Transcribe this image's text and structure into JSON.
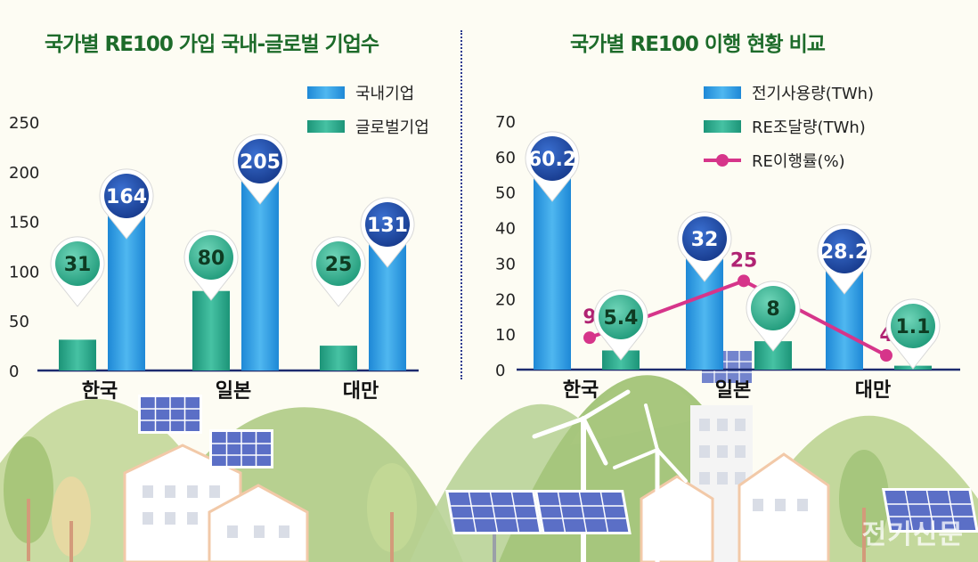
{
  "titles": {
    "left": "국가별 RE100 가입 국내-글로벌 기업수",
    "right": "국가별 RE100 이행 현황 비교"
  },
  "watermark": "전기신문",
  "colors": {
    "domestic": "#2196e0",
    "global": "#22a58c",
    "re_rate": "#d6358a",
    "title": "#1d6b2a",
    "pin": "#1f4aa6"
  },
  "chart_data": [
    {
      "type": "bar",
      "title": "국가별 RE100 가입 국내-글로벌 기업수",
      "categories": [
        "한국",
        "일본",
        "대만"
      ],
      "series": [
        {
          "name": "국내기업",
          "values": [
            164,
            205,
            131
          ]
        },
        {
          "name": "글로벌기업",
          "values": [
            31,
            80,
            25
          ]
        }
      ],
      "ylim": [
        0,
        250
      ],
      "yticks": [
        0,
        50,
        100,
        150,
        200,
        250
      ],
      "legend": "top-right",
      "grid": false
    },
    {
      "type": "bar",
      "title": "국가별 RE100 이행 현황 비교",
      "categories": [
        "한국",
        "일본",
        "대만"
      ],
      "series": [
        {
          "name": "전기사용량(TWh)",
          "values": [
            60.2,
            32,
            28.2
          ]
        },
        {
          "name": "RE조달량(TWh)",
          "values": [
            5.4,
            8,
            1.1
          ]
        },
        {
          "name": "RE이행률(%)",
          "type": "line",
          "values": [
            9,
            25,
            4
          ]
        }
      ],
      "ylim": [
        0,
        70
      ],
      "yticks": [
        0,
        10,
        20,
        30,
        40,
        50,
        60,
        70
      ],
      "legend": "top-right",
      "grid": false
    }
  ]
}
